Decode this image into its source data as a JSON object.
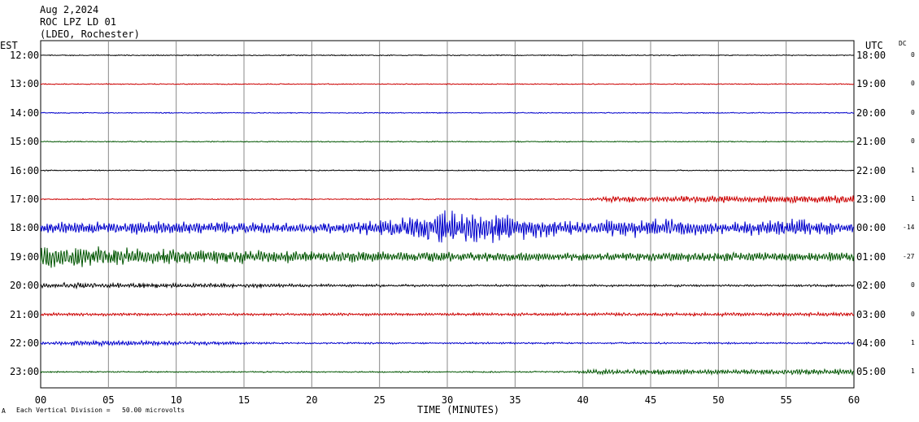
{
  "header": {
    "date": "Aug 2,2024",
    "station": "ROC LPZ LD 01",
    "network": "(LDEO, Rochester)"
  },
  "axes": {
    "left_title": "EST",
    "right_title": "UTC",
    "dc_title": "DC",
    "x_title": "TIME (MINUTES)"
  },
  "footer": {
    "scale_mark": "A",
    "scale_text": "Each Vertical Division =   50.00 microvolts"
  },
  "colors": {
    "black": "#000000",
    "red": "#cc0000",
    "blue": "#0000cc",
    "green": "#005500",
    "grid": "#888888"
  },
  "chart_data": {
    "type": "line",
    "title": "ROC LPZ LD 01",
    "subtitle": "Aug 2,2024",
    "xlabel": "TIME (MINUTES)",
    "xlim": [
      0,
      60
    ],
    "x_ticks": [
      "00",
      "05",
      "10",
      "15",
      "20",
      "25",
      "30",
      "35",
      "40",
      "45",
      "50",
      "55",
      "60"
    ],
    "x_tick_values": [
      0,
      5,
      10,
      15,
      20,
      25,
      30,
      35,
      40,
      45,
      50,
      55,
      60
    ],
    "grid": true,
    "traces": [
      {
        "est": "12:00",
        "utc": "18:00",
        "dc": "0",
        "color": "black",
        "activity": [
          [
            0,
            0.3
          ],
          [
            60,
            0.3
          ]
        ]
      },
      {
        "est": "13:00",
        "utc": "19:00",
        "dc": "0",
        "color": "red",
        "activity": [
          [
            0,
            0.3
          ],
          [
            60,
            0.3
          ]
        ]
      },
      {
        "est": "14:00",
        "utc": "20:00",
        "dc": "0",
        "color": "blue",
        "activity": [
          [
            0,
            0.3
          ],
          [
            60,
            0.3
          ]
        ]
      },
      {
        "est": "15:00",
        "utc": "21:00",
        "dc": "0",
        "color": "green",
        "activity": [
          [
            0,
            0.3
          ],
          [
            60,
            0.3
          ]
        ]
      },
      {
        "est": "16:00",
        "utc": "22:00",
        "dc": "1",
        "color": "black",
        "activity": [
          [
            0,
            0.3
          ],
          [
            60,
            0.3
          ]
        ]
      },
      {
        "est": "17:00",
        "utc": "23:00",
        "dc": "1",
        "color": "red",
        "activity": [
          [
            0,
            0.3
          ],
          [
            40,
            0.4
          ],
          [
            42,
            3
          ],
          [
            55,
            4
          ],
          [
            60,
            4
          ]
        ]
      },
      {
        "est": "18:00",
        "utc": "00:00",
        "dc": "-14",
        "color": "blue",
        "activity": [
          [
            0,
            6
          ],
          [
            10,
            7
          ],
          [
            20,
            5
          ],
          [
            25,
            8
          ],
          [
            30,
            18
          ],
          [
            35,
            14
          ],
          [
            40,
            6
          ],
          [
            44,
            12
          ],
          [
            50,
            6
          ],
          [
            55,
            10
          ],
          [
            60,
            5
          ]
        ]
      },
      {
        "est": "19:00",
        "utc": "01:00",
        "dc": "-27",
        "color": "green",
        "activity": [
          [
            0,
            12
          ],
          [
            10,
            8
          ],
          [
            20,
            6
          ],
          [
            30,
            5
          ],
          [
            40,
            4
          ],
          [
            50,
            5
          ],
          [
            60,
            5
          ]
        ]
      },
      {
        "est": "20:00",
        "utc": "02:00",
        "dc": "0",
        "color": "black",
        "activity": [
          [
            0,
            3
          ],
          [
            10,
            2.5
          ],
          [
            20,
            1.5
          ],
          [
            30,
            1
          ],
          [
            40,
            1
          ],
          [
            60,
            1
          ]
        ]
      },
      {
        "est": "21:00",
        "utc": "03:00",
        "dc": "0",
        "color": "red",
        "activity": [
          [
            0,
            1.5
          ],
          [
            20,
            1.2
          ],
          [
            40,
            1.5
          ],
          [
            60,
            2
          ]
        ]
      },
      {
        "est": "22:00",
        "utc": "04:00",
        "dc": "1",
        "color": "blue",
        "activity": [
          [
            0,
            1.5
          ],
          [
            5,
            3
          ],
          [
            10,
            2
          ],
          [
            20,
            0.8
          ],
          [
            60,
            0.8
          ]
        ]
      },
      {
        "est": "23:00",
        "utc": "05:00",
        "dc": "1",
        "color": "green",
        "activity": [
          [
            0,
            0.5
          ],
          [
            39,
            0.5
          ],
          [
            41,
            3
          ],
          [
            50,
            2.5
          ],
          [
            60,
            3
          ]
        ]
      }
    ]
  }
}
